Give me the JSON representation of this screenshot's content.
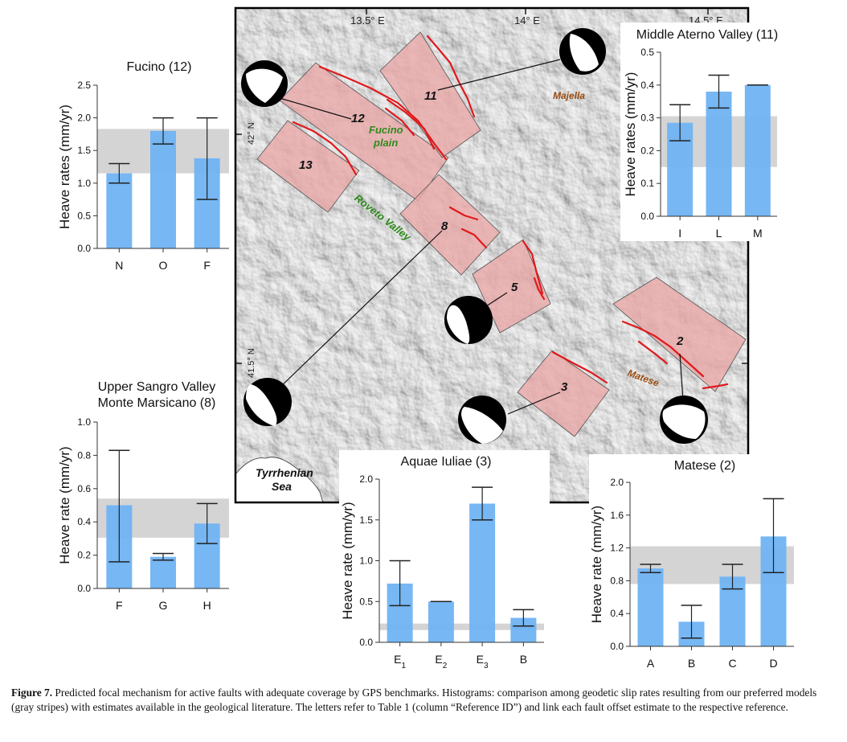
{
  "map": {
    "lon_labels": [
      "13.5° E",
      "14° E",
      "14.5° E"
    ],
    "lat_labels": [
      "42° N",
      "41.5° N"
    ],
    "zone_numbers": [
      "12",
      "13",
      "11",
      "8",
      "5",
      "2",
      "3"
    ],
    "place_names": {
      "fucino_line1": "Fucino",
      "fucino_line2": "plain",
      "roveto": "Roveto Valley",
      "majella": "Majella",
      "matese": "Matese",
      "sea_line1": "Tyrrhenian",
      "sea_line2": "Sea"
    },
    "colors": {
      "fault": "#e0191c",
      "zone_fill": "#e8a7a7",
      "map_bg": "#d9d9d9"
    }
  },
  "chart_data": [
    {
      "id": "fucino",
      "type": "bar",
      "title": "Fucino (12)",
      "xlabel": "",
      "ylabel": "Heave rates (mm/yr)",
      "categories": [
        "N",
        "O",
        "F"
      ],
      "values": [
        1.15,
        1.8,
        1.38
      ],
      "err_low": [
        1.0,
        1.6,
        0.75
      ],
      "err_high": [
        1.3,
        2.0,
        2.0
      ],
      "ylim": [
        0,
        2.5
      ],
      "yticks": [
        "0.0",
        "0.5",
        "1.0",
        "1.5",
        "2.0",
        "2.5"
      ],
      "band": [
        1.15,
        1.83
      ]
    },
    {
      "id": "aterno",
      "type": "bar",
      "title": "Middle Aterno Valley (11)",
      "xlabel": "",
      "ylabel": "Heave rates (mm/yr)",
      "categories": [
        "I",
        "L",
        "M"
      ],
      "values": [
        0.285,
        0.38,
        0.4
      ],
      "err_low": [
        0.23,
        0.33,
        0.4
      ],
      "err_high": [
        0.34,
        0.43,
        0.4
      ],
      "ylim": [
        0,
        0.5
      ],
      "yticks": [
        "0.0",
        "0.1",
        "0.2",
        "0.3",
        "0.4",
        "0.5"
      ],
      "band": [
        0.15,
        0.305
      ]
    },
    {
      "id": "sangro",
      "type": "bar",
      "title": "Upper Sangro Valley",
      "subtitle": "Monte Marsicano (8)",
      "xlabel": "",
      "ylabel": "Heave rate (mm/yr)",
      "categories": [
        "F",
        "G",
        "H"
      ],
      "values": [
        0.5,
        0.19,
        0.39
      ],
      "err_low": [
        0.16,
        0.17,
        0.27
      ],
      "err_high": [
        0.83,
        0.21,
        0.51
      ],
      "ylim": [
        0,
        1.0
      ],
      "yticks": [
        "0.0",
        "0.2",
        "0.4",
        "0.6",
        "0.8",
        "1.0"
      ],
      "band": [
        0.305,
        0.54
      ]
    },
    {
      "id": "aquae",
      "type": "bar",
      "title": "Aquae Iuliae (3)",
      "xlabel": "",
      "ylabel": "Heave rate (mm/yr)",
      "categories": [
        "E1",
        "E2",
        "E3",
        "B"
      ],
      "category_display": [
        [
          "E",
          "1"
        ],
        [
          "E",
          "2"
        ],
        [
          "E",
          "3"
        ],
        [
          "B",
          ""
        ]
      ],
      "values": [
        0.72,
        0.5,
        1.7,
        0.3
      ],
      "err_low": [
        0.45,
        0.5,
        1.5,
        0.2
      ],
      "err_high": [
        1.0,
        0.5,
        1.9,
        0.4
      ],
      "ylim": [
        0,
        2.0
      ],
      "yticks": [
        "0.0",
        "0.5",
        "1.0",
        "1.5",
        "2.0"
      ],
      "band": [
        0.15,
        0.23
      ]
    },
    {
      "id": "matese",
      "type": "bar",
      "title": "Matese (2)",
      "xlabel": "",
      "ylabel": "Heave rate (mm/yr)",
      "categories": [
        "A",
        "B",
        "C",
        "D"
      ],
      "values": [
        0.95,
        0.3,
        0.85,
        1.34
      ],
      "err_low": [
        0.9,
        0.1,
        0.7,
        0.9
      ],
      "err_high": [
        1.0,
        0.5,
        1.0,
        1.8
      ],
      "ylim": [
        0,
        2.0
      ],
      "yticks": [
        "0.0",
        "0.4",
        "0.8",
        "1.2",
        "1.6",
        "2.0"
      ],
      "band": [
        0.76,
        1.22
      ]
    }
  ],
  "colors": {
    "bar": "#6fb3f3",
    "band": "#d4d4d4",
    "errbar": "#222222"
  },
  "caption": {
    "label": "Figure 7.",
    "text": " Predicted focal mechanism for active faults with adequate coverage by GPS benchmarks. Histograms: comparison among geodetic slip rates resulting from our preferred models (gray stripes) with estimates available in the geological literature. The letters refer to Table 1 (column “Reference ID”) and link each fault offset estimate to the respective reference."
  }
}
